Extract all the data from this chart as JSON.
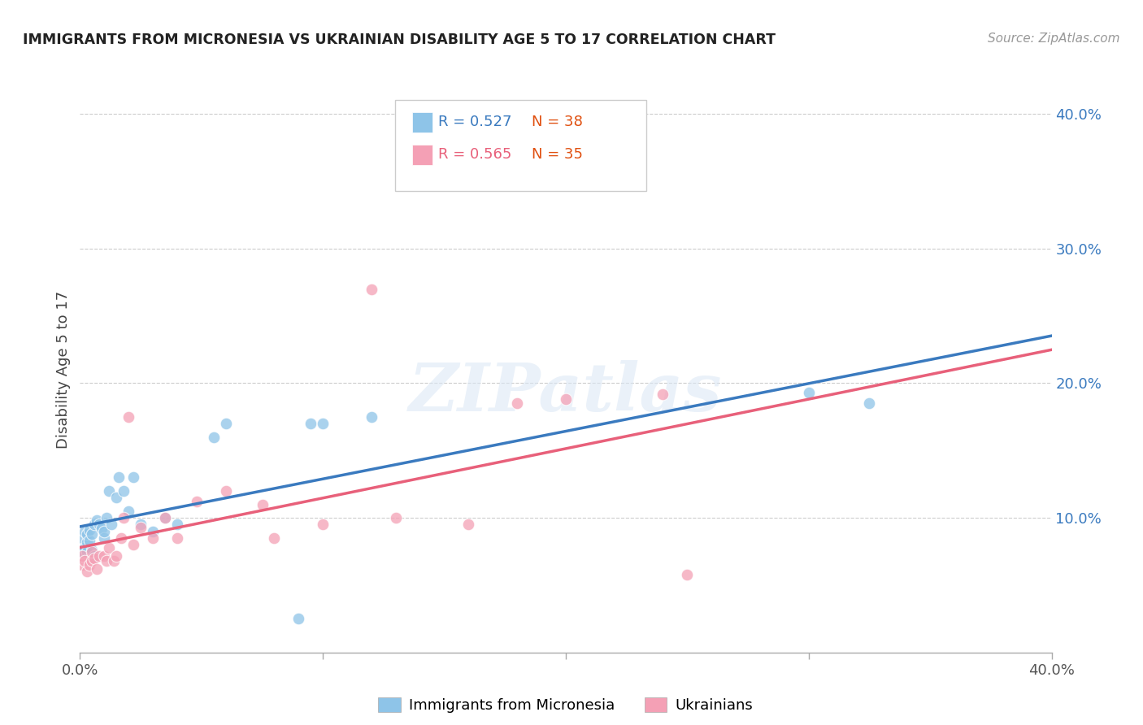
{
  "title": "IMMIGRANTS FROM MICRONESIA VS UKRAINIAN DISABILITY AGE 5 TO 17 CORRELATION CHART",
  "source": "Source: ZipAtlas.com",
  "ylabel": "Disability Age 5 to 17",
  "legend_label_1": "Immigrants from Micronesia",
  "legend_label_2": "Ukrainians",
  "legend_r1": "R = 0.527",
  "legend_n1": "N = 38",
  "legend_r2": "R = 0.565",
  "legend_n2": "N = 35",
  "color_blue": "#8ec4e8",
  "color_pink": "#f4a0b5",
  "color_blue_line": "#3a7abf",
  "color_pink_line": "#e8607a",
  "color_dashed": "#c8c8c8",
  "xlim": [
    0.0,
    0.4
  ],
  "ylim": [
    0.0,
    0.42
  ],
  "yticks": [
    0.1,
    0.2,
    0.3,
    0.4
  ],
  "ytick_labels": [
    "10.0%",
    "20.0%",
    "30.0%",
    "40.0%"
  ],
  "xticks": [
    0.0,
    0.1,
    0.2,
    0.3,
    0.4
  ],
  "watermark_text": "ZIPatlas",
  "background_color": "#ffffff",
  "grid_color": "#cccccc",
  "blue_x": [
    0.001,
    0.001,
    0.002,
    0.002,
    0.003,
    0.003,
    0.003,
    0.004,
    0.004,
    0.005,
    0.005,
    0.006,
    0.006,
    0.007,
    0.008,
    0.009,
    0.01,
    0.01,
    0.011,
    0.012,
    0.013,
    0.015,
    0.016,
    0.018,
    0.02,
    0.022,
    0.025,
    0.03,
    0.035,
    0.04,
    0.055,
    0.06,
    0.09,
    0.095,
    0.1,
    0.12,
    0.3,
    0.325
  ],
  "blue_y": [
    0.075,
    0.085,
    0.078,
    0.09,
    0.082,
    0.088,
    0.075,
    0.083,
    0.091,
    0.076,
    0.088,
    0.072,
    0.095,
    0.098,
    0.095,
    0.092,
    0.085,
    0.09,
    0.1,
    0.12,
    0.095,
    0.115,
    0.13,
    0.12,
    0.105,
    0.13,
    0.095,
    0.09,
    0.1,
    0.095,
    0.16,
    0.17,
    0.025,
    0.17,
    0.17,
    0.175,
    0.193,
    0.185
  ],
  "pink_x": [
    0.001,
    0.001,
    0.002,
    0.003,
    0.004,
    0.005,
    0.005,
    0.006,
    0.007,
    0.008,
    0.01,
    0.011,
    0.012,
    0.014,
    0.015,
    0.017,
    0.018,
    0.02,
    0.022,
    0.025,
    0.03,
    0.035,
    0.04,
    0.048,
    0.06,
    0.075,
    0.08,
    0.1,
    0.12,
    0.16,
    0.18,
    0.2,
    0.24,
    0.25,
    0.13
  ],
  "pink_y": [
    0.065,
    0.072,
    0.068,
    0.06,
    0.065,
    0.068,
    0.075,
    0.07,
    0.062,
    0.072,
    0.072,
    0.068,
    0.078,
    0.068,
    0.072,
    0.085,
    0.1,
    0.175,
    0.08,
    0.093,
    0.085,
    0.1,
    0.085,
    0.112,
    0.12,
    0.11,
    0.085,
    0.095,
    0.27,
    0.095,
    0.185,
    0.188,
    0.192,
    0.058,
    0.1
  ]
}
